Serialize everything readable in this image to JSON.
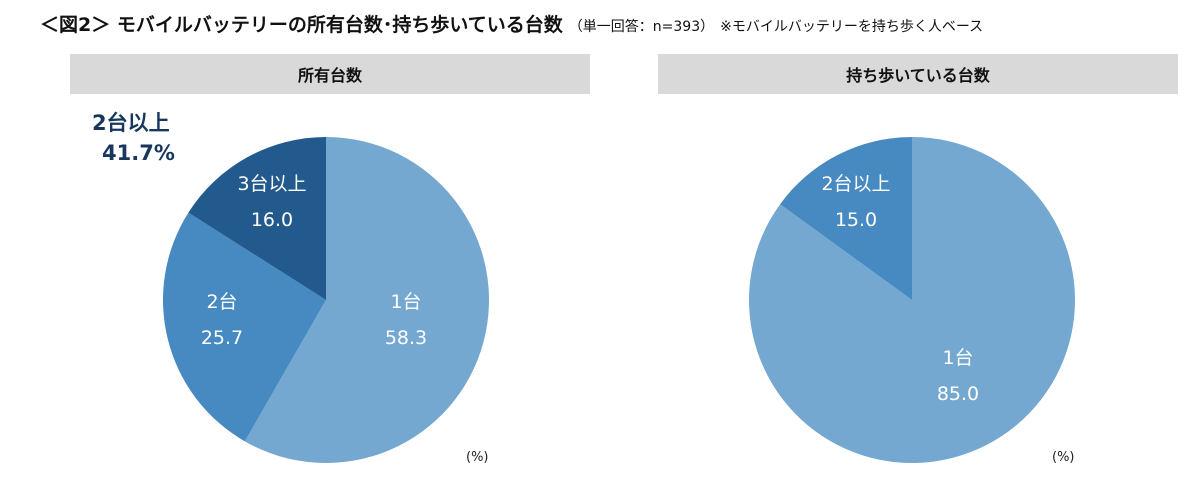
{
  "title": {
    "main": "＜図2＞ モバイルバッテリーの所有台数･持ち歩いている台数",
    "sub": "（単一回答：n=393）",
    "note": "※モバイルバッテリーを持ち歩く人ベース"
  },
  "chart_data": [
    {
      "type": "pie",
      "title": "所有台数",
      "unit": "(%)",
      "slices": [
        {
          "label": "1台",
          "value": 58.3,
          "display": "58.3",
          "color": "#74a8d0"
        },
        {
          "label": "2台",
          "value": 25.7,
          "display": "25.7",
          "color": "#4789c1"
        },
        {
          "label": "3台以上",
          "value": 16.0,
          "display": "16.0",
          "color": "#235a8e"
        }
      ],
      "callout": {
        "label": "2台以上",
        "value": "41.7%",
        "color": "#17375e"
      }
    },
    {
      "type": "pie",
      "title": "持ち歩いている台数",
      "unit": "(%)",
      "slices": [
        {
          "label": "1台",
          "value": 85.0,
          "display": "85.0",
          "color": "#74a8d0"
        },
        {
          "label": "2台以上",
          "value": 15.0,
          "display": "15.0",
          "color": "#4789c1"
        }
      ]
    }
  ]
}
